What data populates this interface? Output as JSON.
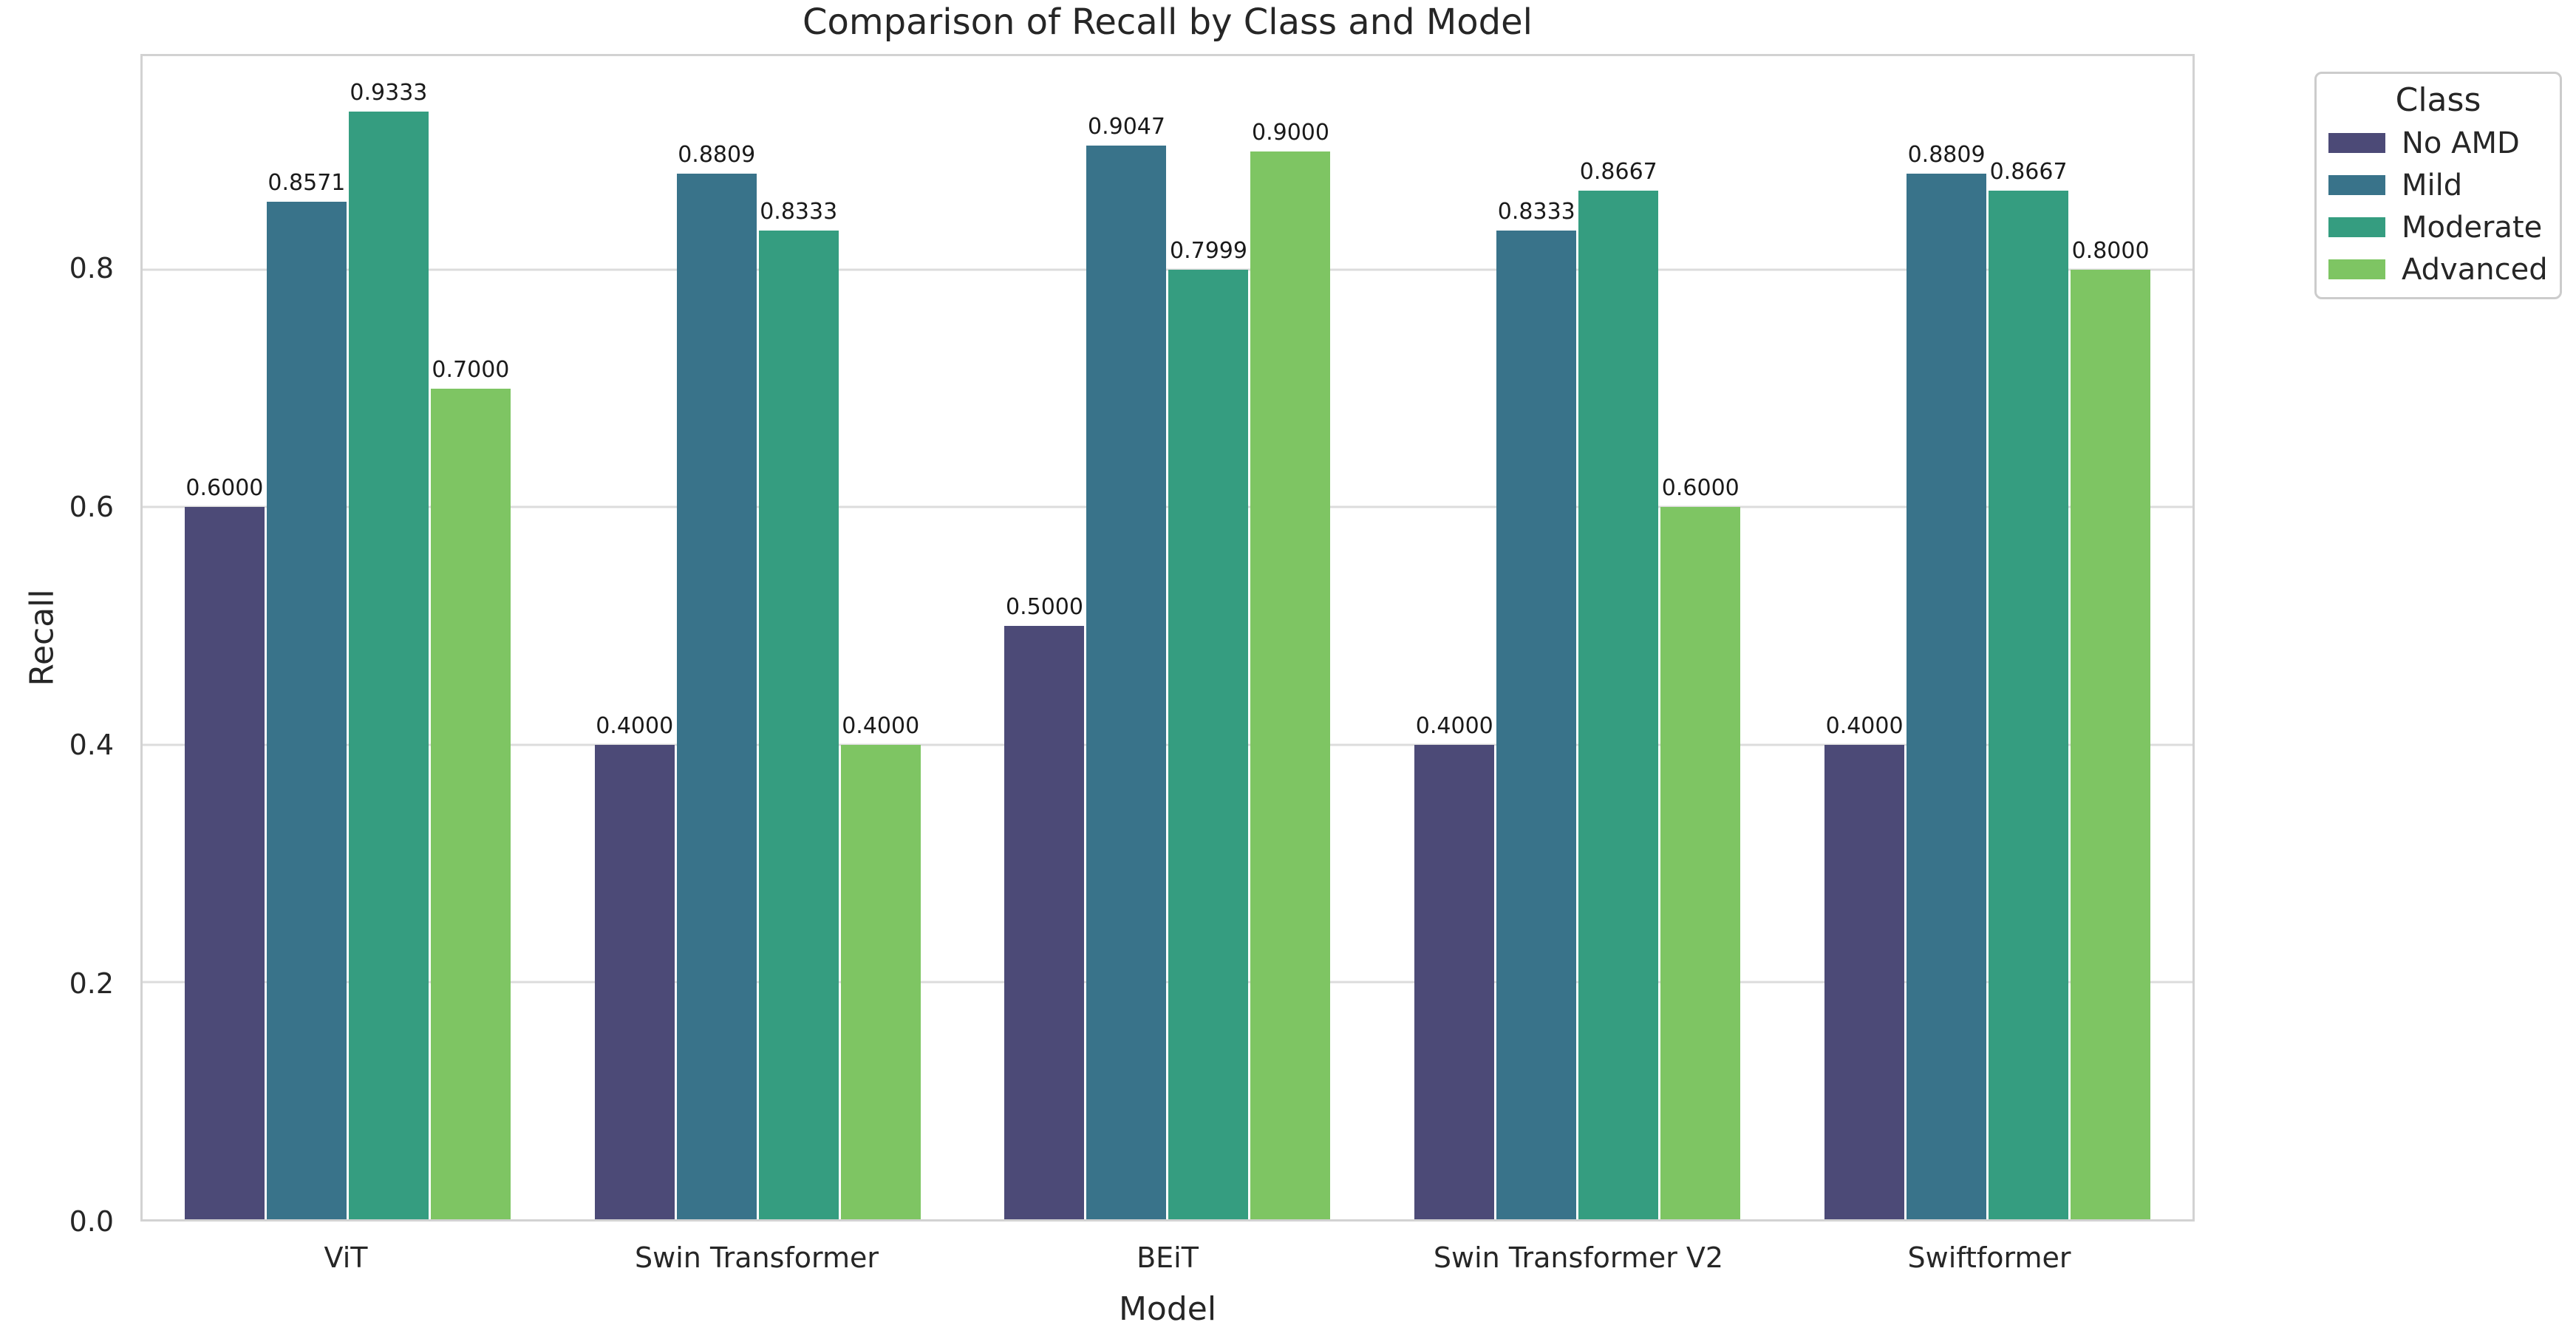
{
  "chart_data": {
    "type": "bar",
    "title": "Comparison of Recall by Class and Model",
    "xlabel": "Model",
    "ylabel": "Recall",
    "legend_title": "Class",
    "legend_position": "upper right outside",
    "grid": true,
    "categories": [
      "ViT",
      "Swin Transformer",
      "BEiT",
      "Swin Transformer V2",
      "Swiftformer"
    ],
    "series": [
      {
        "name": "No AMD",
        "color": "#4c4a77",
        "values": [
          0.6,
          0.4,
          0.5,
          0.4,
          0.4
        ]
      },
      {
        "name": "Mild",
        "color": "#39738a",
        "values": [
          0.8571,
          0.8809,
          0.9047,
          0.8333,
          0.8809
        ]
      },
      {
        "name": "Moderate",
        "color": "#359d80",
        "values": [
          0.9333,
          0.8333,
          0.7999,
          0.8667,
          0.8667
        ]
      },
      {
        "name": "Advanced",
        "color": "#7ec563",
        "values": [
          0.7,
          0.4,
          0.9,
          0.6,
          0.8
        ]
      }
    ],
    "value_label_decimals": 4,
    "ylim": [
      0,
      0.98
    ],
    "yticks": [
      0.0,
      0.2,
      0.4,
      0.6,
      0.8
    ],
    "ytick_labels": [
      "0.0",
      "0.2",
      "0.4",
      "0.6",
      "0.8"
    ]
  }
}
